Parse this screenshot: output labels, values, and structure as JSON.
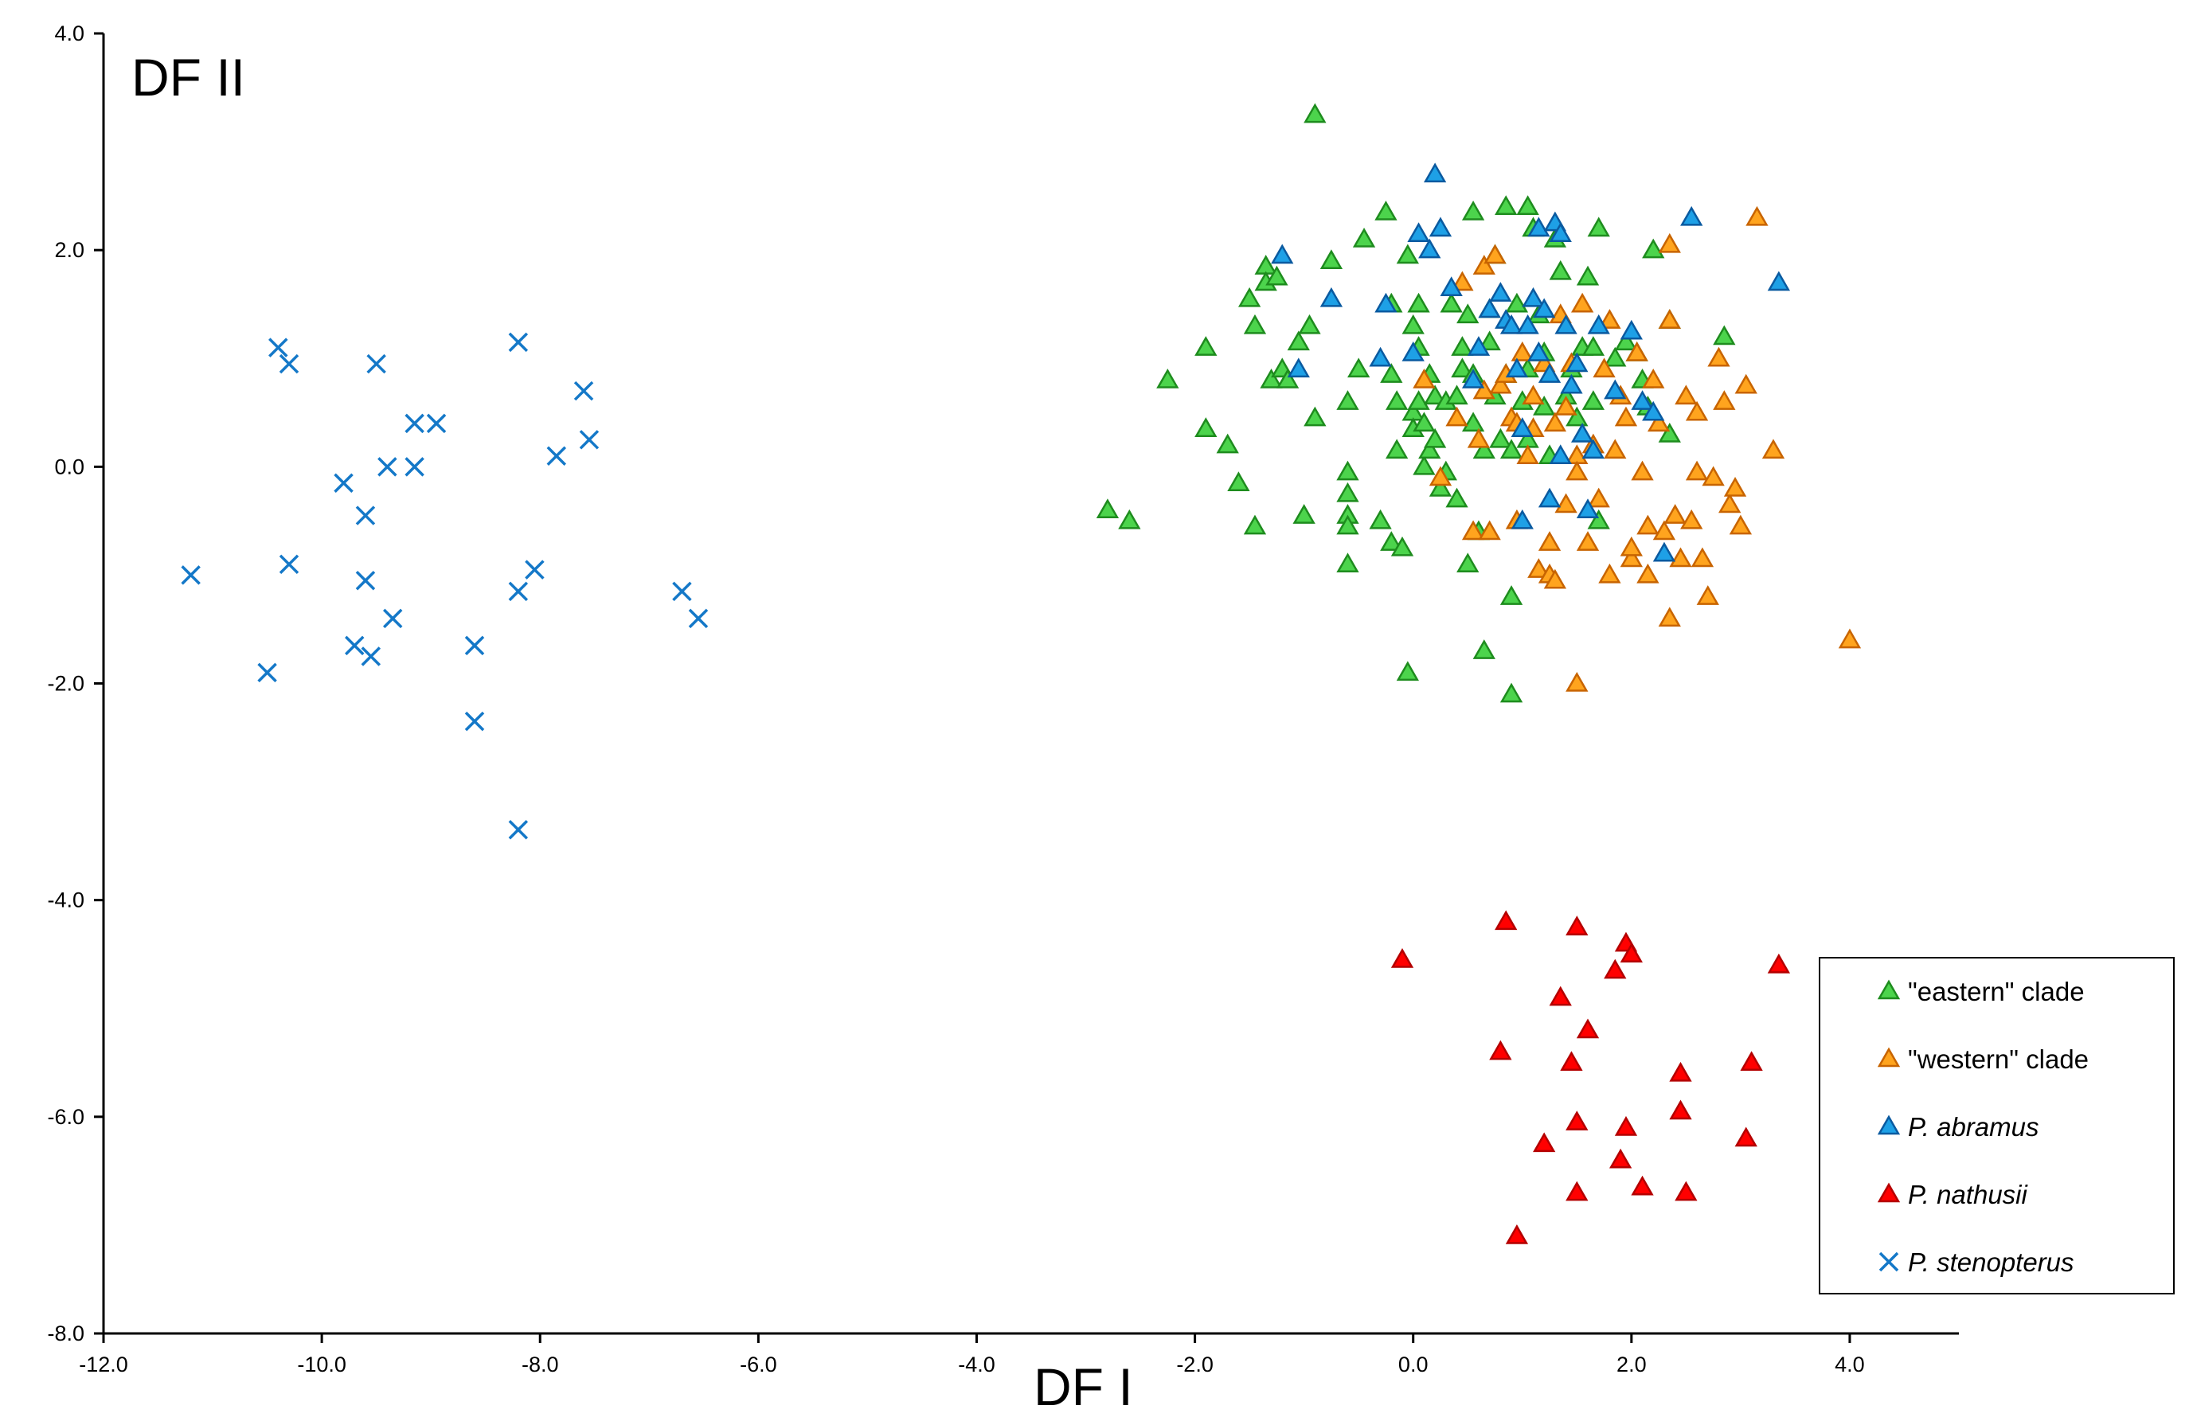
{
  "chart_data": {
    "type": "scatter",
    "xlabel": "DF I",
    "ylabel": "DF II",
    "xlim": [
      -12,
      5
    ],
    "ylim": [
      -8,
      4
    ],
    "x_ticks": [
      "-12.0",
      "-10.0",
      "-8.0",
      "-6.0",
      "-4.0",
      "-2.0",
      "0.0",
      "2.0",
      "4.0"
    ],
    "y_ticks": [
      "4.0",
      "2.0",
      "0.0",
      "-2.0",
      "-4.0",
      "-6.0",
      "-8.0"
    ],
    "grid": false,
    "legend_position": "bottom-right",
    "series": [
      {
        "name": "\"eastern\" clade",
        "marker": "triangle",
        "color": "#4CD44C",
        "edge": "#1E8C1E",
        "points": [
          [
            -2.8,
            -0.4
          ],
          [
            -2.6,
            -0.5
          ],
          [
            -2.25,
            0.8
          ],
          [
            -1.9,
            1.1
          ],
          [
            -1.9,
            0.35
          ],
          [
            -1.7,
            0.2
          ],
          [
            -1.6,
            -0.15
          ],
          [
            -1.5,
            1.55
          ],
          [
            -1.45,
            1.3
          ],
          [
            -1.45,
            -0.55
          ],
          [
            -1.35,
            1.85
          ],
          [
            -1.35,
            1.7
          ],
          [
            -1.3,
            0.8
          ],
          [
            -1.25,
            1.75
          ],
          [
            -1.2,
            0.9
          ],
          [
            -1.15,
            0.8
          ],
          [
            -1.05,
            1.15
          ],
          [
            -1.0,
            -0.45
          ],
          [
            -0.95,
            1.3
          ],
          [
            -0.9,
            0.45
          ],
          [
            -0.9,
            3.25
          ],
          [
            -0.75,
            1.9
          ],
          [
            -0.6,
            0.6
          ],
          [
            -0.6,
            -0.05
          ],
          [
            -0.6,
            -0.25
          ],
          [
            -0.6,
            -0.45
          ],
          [
            -0.6,
            -0.55
          ],
          [
            -0.6,
            -0.9
          ],
          [
            -0.5,
            0.9
          ],
          [
            -0.45,
            2.1
          ],
          [
            -0.3,
            -0.5
          ],
          [
            -0.25,
            2.35
          ],
          [
            -0.2,
            -0.7
          ],
          [
            -0.2,
            1.5
          ],
          [
            -0.2,
            0.85
          ],
          [
            -0.15,
            0.6
          ],
          [
            -0.15,
            0.15
          ],
          [
            -0.1,
            -0.75
          ],
          [
            -0.05,
            1.95
          ],
          [
            -0.05,
            -1.9
          ],
          [
            0.0,
            0.5
          ],
          [
            0.0,
            1.3
          ],
          [
            0.0,
            0.35
          ],
          [
            0.05,
            1.5
          ],
          [
            0.05,
            1.1
          ],
          [
            0.05,
            0.6
          ],
          [
            0.1,
            0.4
          ],
          [
            0.1,
            0.0
          ],
          [
            0.15,
            0.85
          ],
          [
            0.15,
            0.15
          ],
          [
            0.2,
            0.65
          ],
          [
            0.2,
            0.25
          ],
          [
            0.25,
            -0.2
          ],
          [
            0.3,
            0.6
          ],
          [
            0.3,
            -0.05
          ],
          [
            0.35,
            1.5
          ],
          [
            0.4,
            0.65
          ],
          [
            0.4,
            -0.3
          ],
          [
            0.45,
            1.1
          ],
          [
            0.45,
            0.9
          ],
          [
            0.5,
            1.4
          ],
          [
            0.5,
            -0.9
          ],
          [
            0.55,
            2.35
          ],
          [
            0.55,
            0.85
          ],
          [
            0.55,
            0.4
          ],
          [
            0.6,
            -0.6
          ],
          [
            0.65,
            0.15
          ],
          [
            0.65,
            -1.7
          ],
          [
            0.7,
            1.45
          ],
          [
            0.7,
            1.15
          ],
          [
            0.75,
            0.65
          ],
          [
            0.75,
            1.95
          ],
          [
            0.8,
            0.25
          ],
          [
            0.85,
            2.4
          ],
          [
            0.85,
            0.85
          ],
          [
            0.9,
            0.15
          ],
          [
            0.9,
            -1.2
          ],
          [
            0.9,
            -2.1
          ],
          [
            0.95,
            1.5
          ],
          [
            1.0,
            0.6
          ],
          [
            1.05,
            2.4
          ],
          [
            1.05,
            0.9
          ],
          [
            1.05,
            0.25
          ],
          [
            1.1,
            2.2
          ],
          [
            1.15,
            1.4
          ],
          [
            1.2,
            1.05
          ],
          [
            1.2,
            0.55
          ],
          [
            1.25,
            0.1
          ],
          [
            1.3,
            2.1
          ],
          [
            1.35,
            1.8
          ],
          [
            1.4,
            0.65
          ],
          [
            1.45,
            0.9
          ],
          [
            1.5,
            0.45
          ],
          [
            1.55,
            1.1
          ],
          [
            1.6,
            1.75
          ],
          [
            1.65,
            1.1
          ],
          [
            1.65,
            0.6
          ],
          [
            1.7,
            -0.5
          ],
          [
            1.7,
            2.2
          ],
          [
            1.85,
            1.0
          ],
          [
            1.95,
            1.15
          ],
          [
            2.05,
            1.05
          ],
          [
            2.1,
            0.8
          ],
          [
            2.15,
            0.55
          ],
          [
            2.2,
            2.0
          ],
          [
            2.35,
            1.35
          ],
          [
            2.35,
            0.3
          ],
          [
            2.85,
            1.2
          ]
        ]
      },
      {
        "name": "\"western\" clade",
        "marker": "triangle",
        "color": "#FFA41E",
        "edge": "#C86400",
        "points": [
          [
            0.1,
            0.8
          ],
          [
            0.25,
            -0.1
          ],
          [
            0.4,
            0.45
          ],
          [
            0.45,
            1.7
          ],
          [
            0.55,
            -0.6
          ],
          [
            0.6,
            0.25
          ],
          [
            0.65,
            1.85
          ],
          [
            0.7,
            -0.6
          ],
          [
            0.75,
            1.95
          ],
          [
            0.8,
            0.75
          ],
          [
            0.85,
            0.85
          ],
          [
            0.9,
            0.45
          ],
          [
            0.95,
            -0.5
          ],
          [
            0.95,
            0.4
          ],
          [
            1.0,
            1.05
          ],
          [
            1.05,
            0.1
          ],
          [
            1.1,
            0.35
          ],
          [
            1.15,
            -0.95
          ],
          [
            1.2,
            0.95
          ],
          [
            1.25,
            -1.0
          ],
          [
            1.25,
            -0.7
          ],
          [
            1.3,
            -1.05
          ],
          [
            1.3,
            0.4
          ],
          [
            1.35,
            1.4
          ],
          [
            1.4,
            -0.35
          ],
          [
            1.4,
            0.55
          ],
          [
            1.45,
            0.95
          ],
          [
            1.5,
            -2.0
          ],
          [
            1.5,
            0.1
          ],
          [
            1.5,
            -0.05
          ],
          [
            1.55,
            1.5
          ],
          [
            1.6,
            -0.7
          ],
          [
            1.65,
            0.2
          ],
          [
            1.7,
            -0.3
          ],
          [
            1.75,
            0.9
          ],
          [
            1.8,
            1.35
          ],
          [
            1.8,
            -1.0
          ],
          [
            1.85,
            0.15
          ],
          [
            1.9,
            0.65
          ],
          [
            1.95,
            0.45
          ],
          [
            2.0,
            -0.85
          ],
          [
            2.0,
            -0.75
          ],
          [
            2.05,
            1.05
          ],
          [
            2.1,
            -0.05
          ],
          [
            2.15,
            -1.0
          ],
          [
            2.15,
            -0.55
          ],
          [
            2.2,
            0.8
          ],
          [
            2.25,
            0.4
          ],
          [
            2.3,
            -0.6
          ],
          [
            2.35,
            -1.4
          ],
          [
            2.35,
            1.35
          ],
          [
            2.35,
            2.05
          ],
          [
            2.4,
            -0.45
          ],
          [
            2.45,
            -0.85
          ],
          [
            2.5,
            0.65
          ],
          [
            2.55,
            -0.5
          ],
          [
            2.6,
            0.5
          ],
          [
            2.6,
            -0.05
          ],
          [
            2.65,
            -0.85
          ],
          [
            2.7,
            -1.2
          ],
          [
            2.75,
            -0.1
          ],
          [
            2.8,
            1.0
          ],
          [
            2.85,
            0.6
          ],
          [
            2.9,
            -0.35
          ],
          [
            2.95,
            -0.2
          ],
          [
            3.0,
            -0.55
          ],
          [
            3.05,
            0.75
          ],
          [
            3.15,
            2.3
          ],
          [
            3.3,
            0.15
          ],
          [
            4.0,
            -1.6
          ],
          [
            0.65,
            0.7
          ],
          [
            1.1,
            0.65
          ]
        ]
      },
      {
        "name": "P. abramus",
        "marker": "triangle",
        "color": "#1EA0E6",
        "edge": "#0A5AA0",
        "points": [
          [
            -1.2,
            1.95
          ],
          [
            -1.05,
            0.9
          ],
          [
            -0.75,
            1.55
          ],
          [
            -0.3,
            1.0
          ],
          [
            -0.25,
            1.5
          ],
          [
            0.0,
            1.05
          ],
          [
            0.05,
            2.15
          ],
          [
            0.15,
            2.0
          ],
          [
            0.2,
            2.7
          ],
          [
            0.25,
            2.2
          ],
          [
            0.35,
            1.65
          ],
          [
            0.55,
            0.8
          ],
          [
            0.6,
            1.1
          ],
          [
            0.7,
            1.45
          ],
          [
            0.8,
            1.6
          ],
          [
            0.85,
            1.35
          ],
          [
            0.9,
            1.3
          ],
          [
            0.95,
            0.9
          ],
          [
            1.0,
            0.35
          ],
          [
            1.0,
            -0.5
          ],
          [
            1.05,
            1.3
          ],
          [
            1.1,
            1.55
          ],
          [
            1.15,
            2.2
          ],
          [
            1.15,
            1.05
          ],
          [
            1.2,
            1.45
          ],
          [
            1.25,
            0.85
          ],
          [
            1.25,
            -0.3
          ],
          [
            1.3,
            2.25
          ],
          [
            1.35,
            2.15
          ],
          [
            1.35,
            0.1
          ],
          [
            1.4,
            1.3
          ],
          [
            1.45,
            0.75
          ],
          [
            1.5,
            0.95
          ],
          [
            1.55,
            0.3
          ],
          [
            1.6,
            -0.4
          ],
          [
            1.65,
            0.15
          ],
          [
            1.7,
            1.3
          ],
          [
            1.85,
            0.7
          ],
          [
            2.0,
            1.25
          ],
          [
            2.1,
            0.6
          ],
          [
            2.2,
            0.5
          ],
          [
            2.3,
            -0.8
          ],
          [
            2.55,
            2.3
          ],
          [
            3.35,
            1.7
          ]
        ]
      },
      {
        "name": "P. nathusii",
        "marker": "triangle",
        "color": "#FF0000",
        "edge": "#B40000",
        "points": [
          [
            -0.1,
            -4.55
          ],
          [
            0.8,
            -5.4
          ],
          [
            0.85,
            -4.2
          ],
          [
            0.95,
            -7.1
          ],
          [
            1.2,
            -6.25
          ],
          [
            1.35,
            -4.9
          ],
          [
            1.45,
            -5.5
          ],
          [
            1.5,
            -4.25
          ],
          [
            1.5,
            -6.05
          ],
          [
            1.5,
            -6.7
          ],
          [
            1.6,
            -5.2
          ],
          [
            1.85,
            -4.65
          ],
          [
            1.9,
            -6.4
          ],
          [
            1.95,
            -4.4
          ],
          [
            1.95,
            -6.1
          ],
          [
            2.0,
            -4.5
          ],
          [
            2.1,
            -6.65
          ],
          [
            2.45,
            -5.95
          ],
          [
            2.45,
            -5.6
          ],
          [
            2.5,
            -6.7
          ],
          [
            3.05,
            -6.2
          ],
          [
            3.1,
            -5.5
          ],
          [
            3.35,
            -4.6
          ]
        ]
      },
      {
        "name": "P. stenopterus",
        "marker": "x",
        "color": "#1478C8",
        "edge": "#1478C8",
        "points": [
          [
            -11.2,
            -1.0
          ],
          [
            -10.5,
            -1.9
          ],
          [
            -10.4,
            1.1
          ],
          [
            -10.3,
            -0.9
          ],
          [
            -10.3,
            0.95
          ],
          [
            -9.8,
            -0.15
          ],
          [
            -9.7,
            -1.65
          ],
          [
            -9.6,
            -0.45
          ],
          [
            -9.6,
            -1.05
          ],
          [
            -9.55,
            -1.75
          ],
          [
            -9.5,
            0.95
          ],
          [
            -9.4,
            0.0
          ],
          [
            -9.35,
            -1.4
          ],
          [
            -9.15,
            0.0
          ],
          [
            -9.15,
            0.4
          ],
          [
            -8.95,
            0.4
          ],
          [
            -8.6,
            -1.65
          ],
          [
            -8.6,
            -2.35
          ],
          [
            -8.2,
            -1.15
          ],
          [
            -8.2,
            1.15
          ],
          [
            -8.2,
            -3.35
          ],
          [
            -8.05,
            -0.95
          ],
          [
            -7.85,
            0.1
          ],
          [
            -7.6,
            0.7
          ],
          [
            -7.55,
            0.25
          ],
          [
            -6.7,
            -1.15
          ],
          [
            -6.55,
            -1.4
          ]
        ]
      }
    ]
  }
}
